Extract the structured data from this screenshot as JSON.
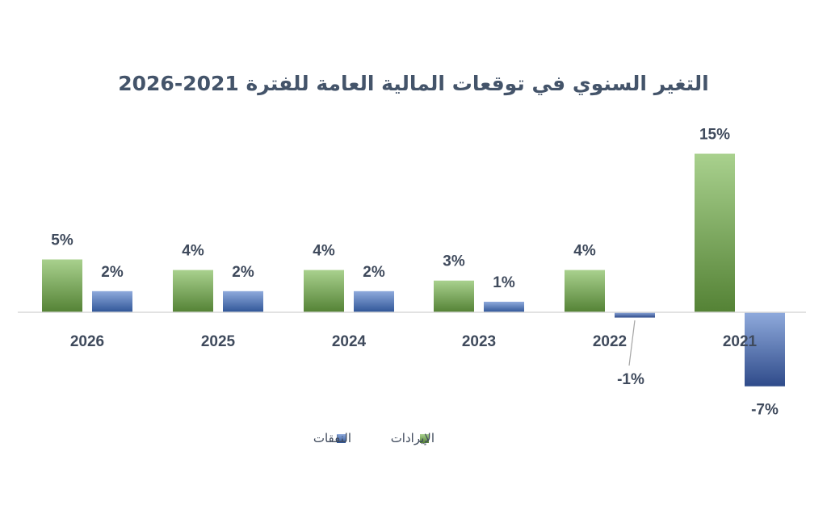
{
  "chart_data": {
    "type": "bar",
    "title": "التغير السنوي في توقعات المالية العامة للفترة 2021-2026",
    "xlabel": "",
    "ylabel": "",
    "categories": [
      "2021",
      "2022",
      "2023",
      "2024",
      "2025",
      "2026"
    ],
    "series": [
      {
        "name": "الإيرادات",
        "values": [
          15,
          4,
          3,
          4,
          4,
          5
        ],
        "labels": [
          "15%",
          "4%",
          "3%",
          "4%",
          "4%",
          "5%"
        ],
        "color": "#70ad47"
      },
      {
        "name": "النفقات",
        "values": [
          -7,
          -0.5,
          1,
          2,
          2,
          2
        ],
        "labels": [
          "-7%",
          "-1%",
          "1%",
          "2%",
          "2%",
          "2%"
        ],
        "color": "#4472c4"
      }
    ],
    "orientation": "right-to-left",
    "grid": false,
    "legend_position": "bottom",
    "ylim": [
      -9,
      16
    ]
  }
}
